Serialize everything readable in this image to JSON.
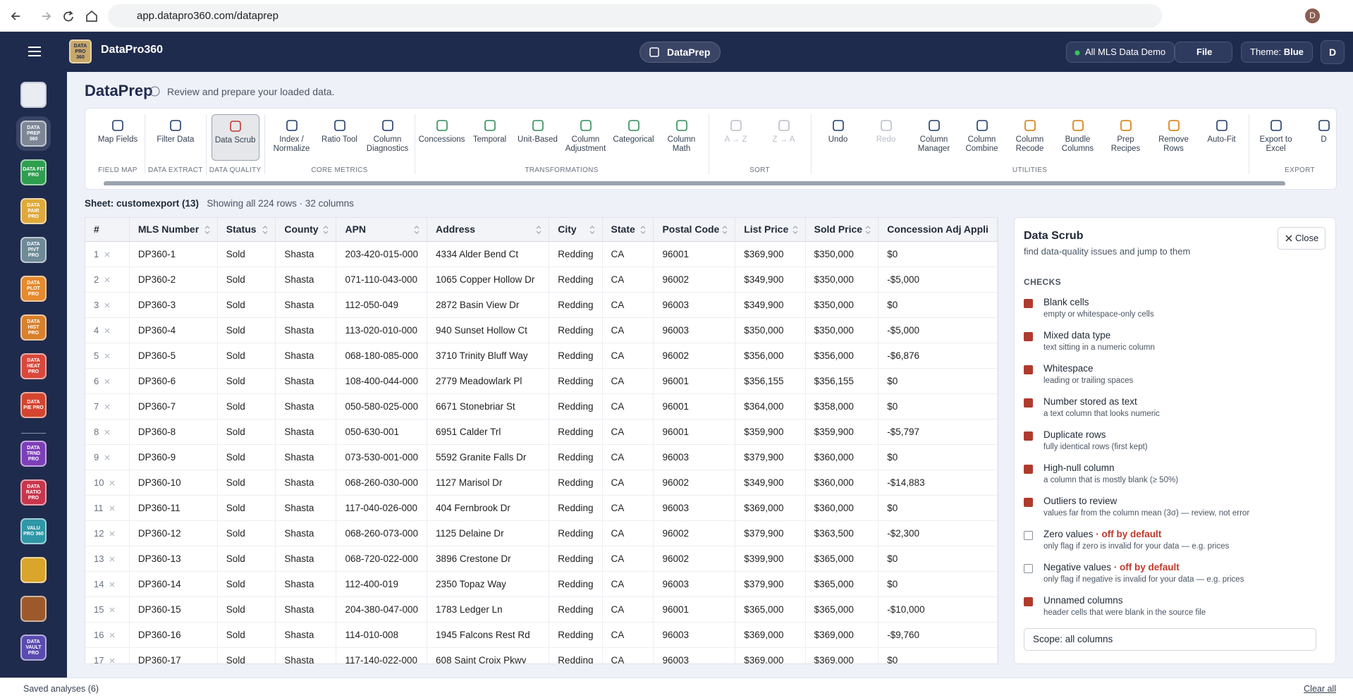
{
  "browser": {
    "url": "app.datapro360.com/dataprep",
    "profile": "D"
  },
  "header": {
    "logo": "DATA PRO 360",
    "brand": "DataPro360",
    "module": "DataPrep",
    "dataset": "All MLS Data Demo",
    "file": "File",
    "theme_label": "Theme:",
    "theme": "Blue",
    "user": "D"
  },
  "sidebar": [
    {
      "color": "#e9ecf3"
    },
    {
      "label": "DATA PREP 360",
      "color": "#7d8796",
      "active": true
    },
    {
      "label": "DATA FIT PRO",
      "color": "#2e9e4f"
    },
    {
      "label": "DATA PAIR PRO",
      "color": "#e0a93b"
    },
    {
      "label": "DATA PIVT PRO",
      "color": "#6f8a97"
    },
    {
      "label": "DATA PLOT PRO",
      "color": "#e58a2e"
    },
    {
      "label": "DATA HIST PRO",
      "color": "#d9802c"
    },
    {
      "label": "DATA HEAT PRO",
      "color": "#d9483b"
    },
    {
      "label": "DATA PIE PRO",
      "color": "#d4452f"
    },
    {
      "label": "DATA TRND PRO",
      "color": "#7d3fb8"
    },
    {
      "label": "DATA RATIO PRO",
      "color": "#c9364c"
    },
    {
      "label": "VALU PRO 360",
      "color": "#2f97a6"
    },
    {
      "color": "#d9a52b"
    },
    {
      "color": "#9c5a2c"
    },
    {
      "label": "DATA VAULT PRO",
      "color": "#5a4bb0"
    }
  ],
  "page": {
    "title": "DataPrep",
    "subtitle": "Review and prepare your loaded data."
  },
  "toolbar": [
    {
      "group": "FIELD MAP",
      "tools": [
        {
          "label": "Map Fields"
        }
      ]
    },
    {
      "group": "DATA EXTRACT",
      "tools": [
        {
          "label": "Filter Data"
        }
      ]
    },
    {
      "group": "DATA QUALITY",
      "tools": [
        {
          "label": "Data Scrub",
          "active": true
        }
      ]
    },
    {
      "group": "CORE METRICS",
      "tools": [
        {
          "label": "Index / Normalize"
        },
        {
          "label": "Ratio Tool"
        },
        {
          "label": "Column Diagnostics"
        }
      ]
    },
    {
      "group": "TRANSFORMATIONS",
      "tools": [
        {
          "label": "Concessions"
        },
        {
          "label": "Temporal"
        },
        {
          "label": "Unit-Based"
        },
        {
          "label": "Column Adjustment"
        },
        {
          "label": "Categorical"
        },
        {
          "label": "Column Math"
        }
      ]
    },
    {
      "group": "SORT",
      "tools": [
        {
          "label": "A → Z",
          "disabled": true
        },
        {
          "label": "Z → A",
          "disabled": true
        }
      ]
    },
    {
      "group": "UTILITIES",
      "tools": [
        {
          "label": "Undo"
        },
        {
          "label": "Redo",
          "disabled": true
        },
        {
          "label": "Column Manager"
        },
        {
          "label": "Column Combine"
        },
        {
          "label": "Column Recode"
        },
        {
          "label": "Bundle Columns"
        },
        {
          "label": "Prep Recipes"
        },
        {
          "label": "Remove Rows"
        },
        {
          "label": "Auto-Fit"
        }
      ]
    },
    {
      "group": "EXPORT",
      "tools": [
        {
          "label": "Export to Excel"
        },
        {
          "label": "D"
        }
      ]
    }
  ],
  "sheet": {
    "label": "Sheet:",
    "name": "customexport (13)",
    "summary": "Showing all 224 rows · 32 columns"
  },
  "table": {
    "columns": [
      "#",
      "MLS Number",
      "Status",
      "County",
      "APN",
      "Address",
      "City",
      "State",
      "Postal Code",
      "List Price",
      "Sold Price",
      "Concession Adj Appli"
    ],
    "rows": [
      [
        "1",
        "DP360-1",
        "Sold",
        "Shasta",
        "203-420-015-000",
        "4334 Alder Bend Ct",
        "Redding",
        "CA",
        "96001",
        "$369,900",
        "$350,000",
        "$0"
      ],
      [
        "2",
        "DP360-2",
        "Sold",
        "Shasta",
        "071-110-043-000",
        "1065 Copper Hollow Dr",
        "Redding",
        "CA",
        "96002",
        "$349,900",
        "$350,000",
        "-$5,000"
      ],
      [
        "3",
        "DP360-3",
        "Sold",
        "Shasta",
        "112-050-049",
        "2872 Basin View Dr",
        "Redding",
        "CA",
        "96003",
        "$349,900",
        "$350,000",
        "$0"
      ],
      [
        "4",
        "DP360-4",
        "Sold",
        "Shasta",
        "113-020-010-000",
        "940 Sunset Hollow Ct",
        "Redding",
        "CA",
        "96003",
        "$350,000",
        "$350,000",
        "-$5,000"
      ],
      [
        "5",
        "DP360-5",
        "Sold",
        "Shasta",
        "068-180-085-000",
        "3710 Trinity Bluff Way",
        "Redding",
        "CA",
        "96002",
        "$356,000",
        "$356,000",
        "-$6,876"
      ],
      [
        "6",
        "DP360-6",
        "Sold",
        "Shasta",
        "108-400-044-000",
        "2779 Meadowlark Pl",
        "Redding",
        "CA",
        "96001",
        "$356,155",
        "$356,155",
        "$0"
      ],
      [
        "7",
        "DP360-7",
        "Sold",
        "Shasta",
        "050-580-025-000",
        "6671 Stonebriar St",
        "Redding",
        "CA",
        "96001",
        "$364,000",
        "$358,000",
        "$0"
      ],
      [
        "8",
        "DP360-8",
        "Sold",
        "Shasta",
        "050-630-001",
        "6951 Calder Trl",
        "Redding",
        "CA",
        "96001",
        "$359,900",
        "$359,900",
        "-$5,797"
      ],
      [
        "9",
        "DP360-9",
        "Sold",
        "Shasta",
        "073-530-001-000",
        "5592 Granite Falls Dr",
        "Redding",
        "CA",
        "96003",
        "$379,900",
        "$360,000",
        "$0"
      ],
      [
        "10",
        "DP360-10",
        "Sold",
        "Shasta",
        "068-260-030-000",
        "1127 Marisol Dr",
        "Redding",
        "CA",
        "96002",
        "$349,900",
        "$360,000",
        "-$14,883"
      ],
      [
        "11",
        "DP360-11",
        "Sold",
        "Shasta",
        "117-040-026-000",
        "404 Fernbrook Dr",
        "Redding",
        "CA",
        "96003",
        "$369,000",
        "$360,000",
        "$0"
      ],
      [
        "12",
        "DP360-12",
        "Sold",
        "Shasta",
        "068-260-073-000",
        "1125 Delaine Dr",
        "Redding",
        "CA",
        "96002",
        "$379,900",
        "$363,500",
        "-$2,300"
      ],
      [
        "13",
        "DP360-13",
        "Sold",
        "Shasta",
        "068-720-022-000",
        "3896 Crestone Dr",
        "Redding",
        "CA",
        "96002",
        "$399,900",
        "$365,000",
        "$0"
      ],
      [
        "14",
        "DP360-14",
        "Sold",
        "Shasta",
        "112-400-019",
        "2350 Topaz Way",
        "Redding",
        "CA",
        "96003",
        "$379,900",
        "$365,000",
        "$0"
      ],
      [
        "15",
        "DP360-15",
        "Sold",
        "Shasta",
        "204-380-047-000",
        "1783 Ledger Ln",
        "Redding",
        "CA",
        "96001",
        "$365,000",
        "$365,000",
        "-$10,000"
      ],
      [
        "16",
        "DP360-16",
        "Sold",
        "Shasta",
        "114-010-008",
        "1945 Falcons Rest Rd",
        "Redding",
        "CA",
        "96003",
        "$369,000",
        "$369,000",
        "-$9,760"
      ],
      [
        "17",
        "DP360-17",
        "Sold",
        "Shasta",
        "117-140-022-000",
        "608 Saint Croix Pkwy",
        "Redding",
        "CA",
        "96003",
        "$369,000",
        "$369,000",
        "$0"
      ]
    ]
  },
  "panel": {
    "title": "Data Scrub",
    "description": "find data-quality issues and jump to them",
    "close": "Close",
    "checks_heading": "CHECKS",
    "checks": [
      {
        "label": "Blank cells",
        "desc": "empty or whitespace-only cells",
        "checked": true
      },
      {
        "label": "Mixed data type",
        "desc": "text sitting in a numeric column",
        "checked": true
      },
      {
        "label": "Whitespace",
        "desc": "leading or trailing spaces",
        "checked": true
      },
      {
        "label": "Number stored as text",
        "desc": "a text column that looks numeric",
        "checked": true
      },
      {
        "label": "Duplicate rows",
        "desc": "fully identical rows (first kept)",
        "checked": true
      },
      {
        "label": "High-null column",
        "desc": "a column that is mostly blank (≥ 50%)",
        "checked": true
      },
      {
        "label": "Outliers to review",
        "desc": "values far from the column mean (3σ) — review, not error",
        "checked": true
      },
      {
        "label": "Zero values",
        "note": " · off by default",
        "desc": "only flag if zero is invalid for your data — e.g. prices",
        "checked": false
      },
      {
        "label": "Negative values",
        "note": " · off by default",
        "desc": "only flag if negative is invalid for your data — e.g. prices",
        "checked": false
      },
      {
        "label": "Unnamed columns",
        "desc": "header cells that were blank in the source file",
        "checked": true
      }
    ],
    "scope": "Scope: all columns"
  },
  "footer": {
    "saved": "Saved analyses (6)",
    "clear": "Clear all"
  }
}
